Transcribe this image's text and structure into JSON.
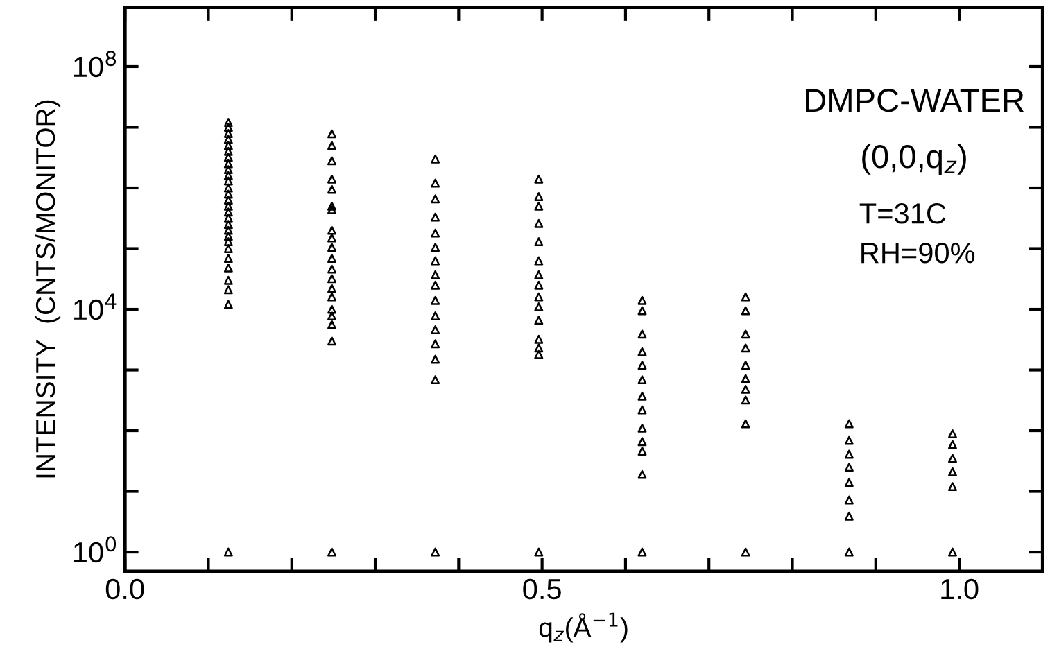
{
  "chart_data": {
    "type": "scatter",
    "xlabel": "q$_{z}$(Å$^{−1}$)",
    "ylabel": "INTENSITY  (CNTS/MONITOR)",
    "annotations": [
      "DMPC-WATER",
      "(0,0,q$_{z}$)",
      "T=31C",
      "RH=90%"
    ],
    "log": "y",
    "xlim": [
      0,
      1.1
    ],
    "ylim": [
      0.48,
      950000000.0
    ],
    "xticks": [
      {
        "value": 0,
        "label": "0.0"
      },
      {
        "value": 0.1,
        "label": null
      },
      {
        "value": 0.2,
        "label": null
      },
      {
        "value": 0.3,
        "label": null
      },
      {
        "value": 0.4,
        "label": null
      },
      0.5,
      {
        "value": 0.6,
        "label": null
      },
      {
        "value": 0.7,
        "label": null
      },
      {
        "value": 0.8,
        "label": null
      },
      {
        "value": 0.9,
        "label": null
      },
      {
        "value": 1,
        "label": "1.0"
      }
    ],
    "yticks": [
      {
        "value": 1,
        "label": "10$^{0}$"
      },
      {
        "value": 10,
        "label": null
      },
      {
        "value": 100,
        "label": null
      },
      {
        "value": 1000,
        "label": null
      },
      {
        "value": 10000,
        "label": "10$^{4}$"
      },
      {
        "value": 100000,
        "label": null
      },
      {
        "value": 1000000,
        "label": null
      },
      {
        "value": 10000000,
        "label": null
      },
      {
        "value": 100000000,
        "label": "10$^{8}$"
      }
    ],
    "marker": "triangle",
    "grid": false,
    "legend": false,
    "series": [
      {
        "color": "#000000",
        "x": [
          0.124,
          0.124,
          0.124,
          0.124,
          0.124,
          0.124,
          0.124,
          0.124,
          0.124,
          0.124,
          0.124,
          0.124,
          0.124,
          0.124,
          0.124,
          0.124,
          0.124,
          0.124,
          0.124,
          0.124,
          0.124,
          0.124,
          0.124,
          0.124,
          0.124,
          0.124,
          0.124,
          0.124,
          0.248,
          0.248,
          0.248,
          0.248,
          0.248,
          0.248,
          0.248,
          0.248,
          0.248,
          0.248,
          0.248,
          0.248,
          0.248,
          0.248,
          0.248,
          0.248,
          0.248,
          0.248,
          0.248,
          0.248,
          0.372,
          0.372,
          0.372,
          0.372,
          0.372,
          0.372,
          0.372,
          0.372,
          0.372,
          0.372,
          0.372,
          0.372,
          0.372,
          0.372,
          0.372,
          0.372,
          0.496,
          0.496,
          0.496,
          0.496,
          0.496,
          0.496,
          0.496,
          0.496,
          0.496,
          0.496,
          0.496,
          0.496,
          0.496,
          0.496,
          0.496,
          0.62,
          0.62,
          0.62,
          0.62,
          0.62,
          0.62,
          0.62,
          0.62,
          0.62,
          0.62,
          0.62,
          0.62,
          0.62,
          0.744,
          0.744,
          0.744,
          0.744,
          0.744,
          0.744,
          0.744,
          0.744,
          0.744,
          0.744,
          0.868,
          0.868,
          0.868,
          0.868,
          0.868,
          0.868,
          0.868,
          0.868,
          0.992,
          0.992,
          0.992,
          0.992,
          0.992,
          0.992
        ],
        "values": [
          12000000.0,
          10000000.0,
          7900000.0,
          6300000.0,
          5000000.0,
          4000000.0,
          3200000.0,
          2500000.0,
          2000000.0,
          1600000.0,
          1300000.0,
          1000000.0,
          790000.0,
          630000.0,
          500000.0,
          400000.0,
          320000.0,
          250000.0,
          200000.0,
          160000.0,
          130000.0,
          100000.0,
          69000.0,
          48000.0,
          30000.0,
          21000.0,
          12000.0,
          1,
          7800000.0,
          5000000.0,
          2800000.0,
          1400000.0,
          950000.0,
          500000.0,
          440000.0,
          200000.0,
          150000.0,
          105000.0,
          69000.0,
          46000.0,
          32000.0,
          22000.0,
          16000.0,
          10000.0,
          7800.0,
          5600.0,
          3000.0,
          1,
          3000000.0,
          1200000.0,
          660000.0,
          330000.0,
          180000.0,
          105000.0,
          63000.0,
          37000.0,
          25000.0,
          14000.0,
          7800.0,
          4600.0,
          2700.0,
          1500.0,
          690,
          1,
          1400000.0,
          720000.0,
          500000.0,
          260000.0,
          130000.0,
          63000.0,
          37000.0,
          25000.0,
          16000.0,
          11000.0,
          6600.0,
          3200.0,
          2300.0,
          1800.0,
          1,
          14000.0,
          9500.0,
          3900.0,
          2000.0,
          1200.0,
          690,
          370,
          220,
          110,
          66,
          46,
          19,
          1,
          16000.0,
          9500.0,
          3900.0,
          2300.0,
          1200.0,
          720,
          480,
          320,
          130,
          1,
          130,
          69,
          41,
          25,
          14,
          7.2,
          3.9,
          1,
          89,
          59,
          35,
          21,
          12,
          1
        ]
      }
    ]
  }
}
